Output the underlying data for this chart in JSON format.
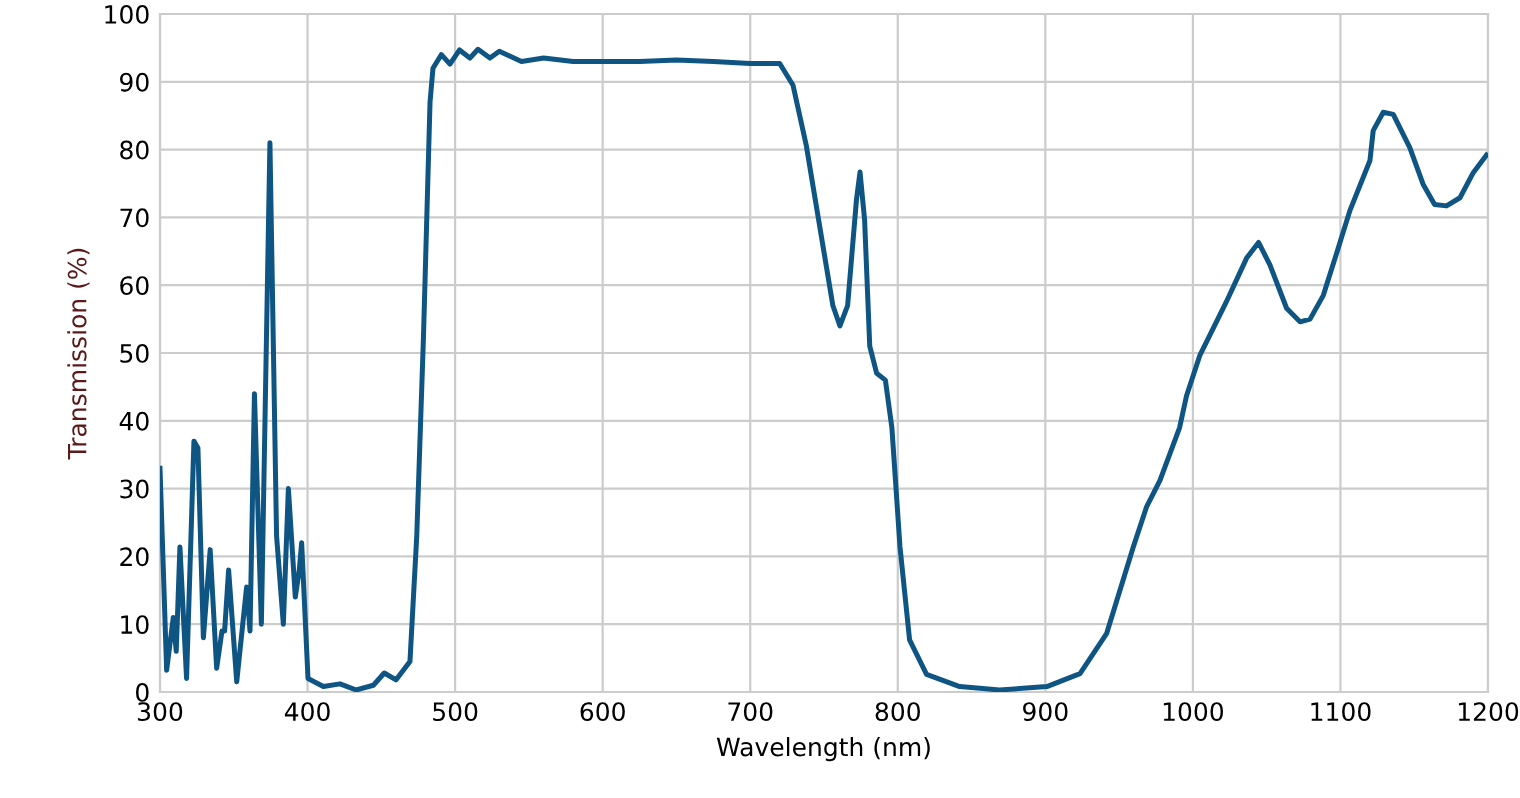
{
  "chart_data": {
    "type": "line",
    "xlabel": "Wavelength (nm)",
    "ylabel": "Transmission (%)",
    "xlim": [
      300,
      1200
    ],
    "xticks": [
      300,
      400,
      500,
      600,
      700,
      800,
      900,
      1000,
      1100,
      1200
    ],
    "ylim": [
      0,
      100
    ],
    "yticks": [
      0,
      10,
      20,
      30,
      40,
      50,
      60,
      70,
      80,
      90,
      100
    ],
    "grid": true,
    "marker": "none",
    "line_style": "solid",
    "series": [
      {
        "color": "#0f5584",
        "x": [
          300,
          304.5,
          309,
          311,
          313.5,
          318,
          323,
          325.7,
          329.4,
          334,
          338.4,
          342,
          343.8,
          346.5,
          352,
          358.7,
          361,
          364,
          368.7,
          374.5,
          379,
          383.6,
          387,
          391.7,
          394.4,
          396,
          400.3,
          410.7,
          422,
          433,
          444.6,
          452,
          460,
          469.4,
          474,
          478.5,
          483,
          485,
          490.7,
          496.5,
          503,
          510,
          515.5,
          523.6,
          530,
          545,
          560,
          580,
          600,
          625,
          650,
          675,
          700,
          706.6,
          720,
          729,
          738,
          747,
          756,
          760.8,
          766,
          772,
          774.4,
          777.5,
          781,
          785.7,
          791.6,
          796,
          801.5,
          808,
          819.5,
          842,
          869,
          901,
          923.5,
          941.5,
          959.6,
          968.6,
          977.7,
          991,
          995.7,
          1004.8,
          1022.8,
          1036.4,
          1044.5,
          1052.2,
          1063.5,
          1072.6,
          1079.4,
          1088.4,
          1097.4,
          1106.4,
          1120,
          1122.2,
          1129,
          1135.8,
          1147,
          1156,
          1163.8,
          1171.9,
          1181,
          1190,
          1199
        ],
        "values": [
          33,
          3.2,
          11,
          6,
          21.4,
          2,
          37,
          36,
          8,
          21,
          3.5,
          9,
          9,
          18,
          1.5,
          15.5,
          9,
          44,
          10,
          81,
          23,
          10,
          30,
          14,
          18,
          22,
          2,
          0.8,
          1.2,
          0.3,
          1,
          2.8,
          1.8,
          4.5,
          23,
          52,
          87,
          92,
          94,
          92.6,
          94.7,
          93.5,
          94.8,
          93.5,
          94.5,
          93,
          93.5,
          93,
          93,
          93,
          93.2,
          93,
          92.7,
          92.7,
          92.7,
          89.5,
          80.6,
          68.8,
          57,
          54,
          57,
          72.6,
          76.7,
          69.7,
          51,
          47,
          46,
          39,
          21.4,
          7.7,
          2.6,
          0.8,
          0.3,
          0.8,
          2.7,
          8.6,
          21.4,
          27.3,
          31.2,
          39,
          43.7,
          49.7,
          57.6,
          64,
          66.3,
          63,
          56.6,
          54.6,
          55,
          58.5,
          64.7,
          71,
          78.4,
          82.8,
          85.5,
          85.2,
          80.3,
          74.9,
          71.9,
          71.7,
          72.9,
          76.6,
          79.2
        ]
      }
    ]
  }
}
